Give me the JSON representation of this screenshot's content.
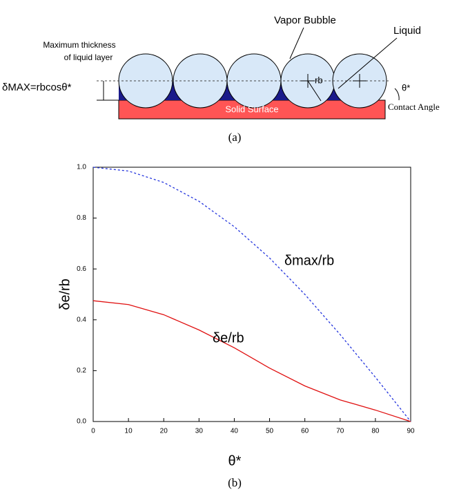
{
  "diagram": {
    "label_vapor": "Vapor Bubble",
    "label_liquid": "Liquid",
    "label_max_1": "Maximum thickness",
    "label_max_2": "of liquid layer",
    "label_formula": "δMAX=rbcosθ*",
    "label_rb": "rb",
    "label_theta": "θ*",
    "label_contact": "Contact Angle",
    "label_surface": "Solid Surface",
    "caption": "(a)"
  },
  "chart_data": {
    "type": "line",
    "caption": "(b)",
    "x_label": "θ*",
    "y_label": "δe/rb",
    "x": [
      0,
      10,
      20,
      30,
      40,
      50,
      60,
      70,
      80,
      90
    ],
    "series": [
      {
        "name": "δmax/rb",
        "color": "#2233dd",
        "dash": true,
        "values": [
          1.0,
          0.985,
          0.94,
          0.866,
          0.766,
          0.643,
          0.5,
          0.342,
          0.174,
          0.0
        ]
      },
      {
        "name": "δe/rb",
        "color": "#e01010",
        "dash": false,
        "values": [
          0.475,
          0.46,
          0.42,
          0.36,
          0.29,
          0.21,
          0.14,
          0.085,
          0.045,
          0.0
        ]
      }
    ],
    "xlim": [
      0,
      90
    ],
    "ylim": [
      0,
      1.0
    ],
    "xticks": [
      0,
      10,
      20,
      30,
      40,
      50,
      60,
      70,
      80,
      90
    ],
    "yticks": [
      {
        "value": 0,
        "label": "0.0"
      },
      {
        "value": 0.2,
        "label": "0.2"
      },
      {
        "value": 0.4,
        "label": "0.4"
      },
      {
        "value": 0.6,
        "label": "0.6"
      },
      {
        "value": 0.8,
        "label": "0.8"
      },
      {
        "value": 1.0,
        "label": "1.0"
      }
    ]
  }
}
